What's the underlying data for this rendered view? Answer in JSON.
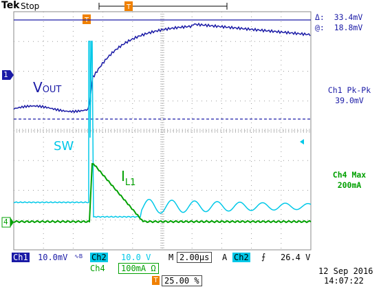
{
  "header": {
    "brand": "Tek",
    "state": "Stop"
  },
  "cursor_readout": {
    "delta_label": "Δ:",
    "delta_value": "33.4mV",
    "at_label": "@:",
    "at_value": "18.8mV"
  },
  "measurements": {
    "ch1_label": "Ch1 Pk-Pk",
    "ch1_value": "39.0mV",
    "ch4_label": "Ch4 Max",
    "ch4_value": "200mA"
  },
  "waveform_labels": {
    "vout_main": "V",
    "vout_sub": "OUT",
    "sw": "SW",
    "il_main": "I",
    "il_sub": "L1"
  },
  "markers": {
    "ch1": "1",
    "ch4": "4",
    "trigger": "T"
  },
  "status": {
    "ch1": "Ch1",
    "ch1_scale": "10.0mV",
    "ch1_coupling": "∿B",
    "ch2": "Ch2",
    "ch2_scale": "10.0 V",
    "ch4": "Ch4",
    "ch4_scale": "100mA Ω",
    "timebase_label": "M",
    "timebase": "2.00µs",
    "trig_mode": "A",
    "trig_source": "Ch2",
    "trig_slope": "⨍",
    "trig_level": "26.4 V",
    "trigger_position": "25.00 %",
    "date": "12 Sep  2016",
    "time": "14:07:22"
  },
  "colors": {
    "ch1": "#1a1aa6",
    "ch2": "#00c8e8",
    "ch4": "#00a000",
    "trigger": "#f08000"
  }
}
